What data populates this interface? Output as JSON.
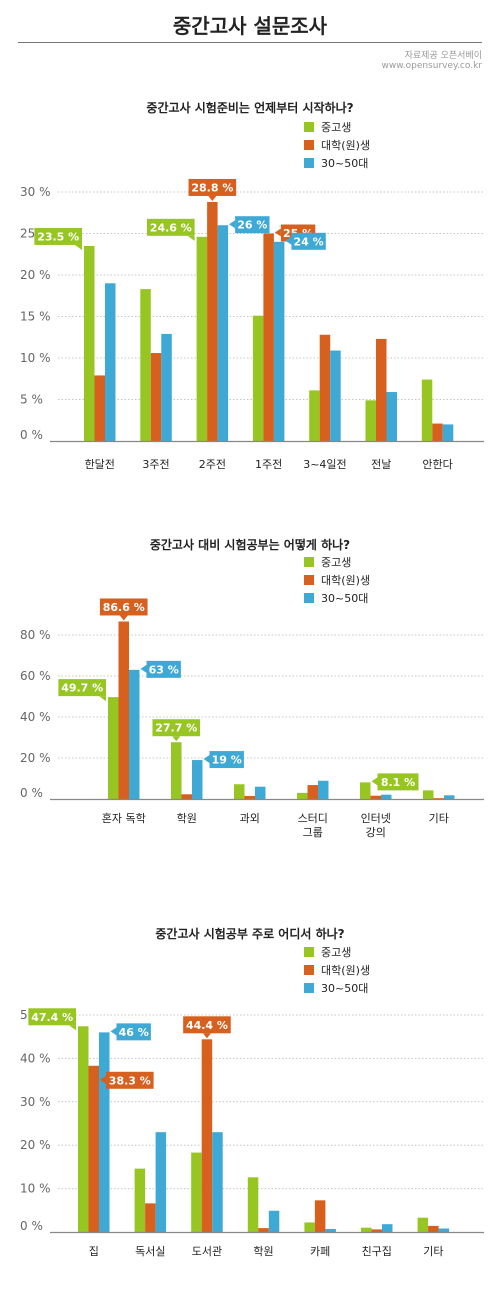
{
  "page": {
    "title": "중간고사 설문조사",
    "source_line1": "자료제공 오픈서베이",
    "source_line2": "www.opensurvey.co.kr"
  },
  "colors": {
    "series": [
      "#97c622",
      "#d7601f",
      "#3fa9d6"
    ],
    "grid": "#c4c4c4",
    "axis": "#888888"
  },
  "chart_data": [
    {
      "type": "bar",
      "title": "중간고사 시험준비는 언제부터 시작하나?",
      "categories": [
        [
          "한달전"
        ],
        [
          "3주전"
        ],
        [
          "2주전"
        ],
        [
          "1주전"
        ],
        [
          "3~4일전"
        ],
        [
          "전날"
        ],
        [
          "안한다"
        ]
      ],
      "series": [
        {
          "name": "중고생",
          "values": [
            23.5,
            18.3,
            24.6,
            15.1,
            6.1,
            4.9,
            7.4
          ]
        },
        {
          "name": "대학(원)생",
          "values": [
            7.9,
            10.6,
            28.8,
            25.0,
            12.8,
            12.3,
            2.1
          ]
        },
        {
          "name": "30~50대",
          "values": [
            19.0,
            12.9,
            26.0,
            24.0,
            10.9,
            5.9,
            2.0
          ]
        }
      ],
      "ylim": [
        0,
        30
      ],
      "yticks": [
        0,
        5,
        10,
        15,
        20,
        25,
        30
      ],
      "tick_suffix": " %",
      "legend": "top-right",
      "callouts": [
        {
          "text": "23.5 %",
          "series": 0,
          "category": 0,
          "side": "left"
        },
        {
          "text": "24.6 %",
          "series": 0,
          "category": 2,
          "side": "left"
        },
        {
          "text": "28.8 %",
          "series": 1,
          "category": 2,
          "side": "up"
        },
        {
          "text": "26 %",
          "series": 2,
          "category": 2,
          "side": "right"
        },
        {
          "text": "25 %",
          "series": 1,
          "category": 3,
          "side": "right"
        },
        {
          "text": "24 %",
          "series": 2,
          "category": 3,
          "side": "right"
        }
      ]
    },
    {
      "type": "bar",
      "title": "중간고사 대비 시험공부는 어떻게 하나?",
      "categories": [
        [
          "혼자 독학"
        ],
        [
          "학원"
        ],
        [
          "과외"
        ],
        [
          "스터디",
          "그룹"
        ],
        [
          "인터넷",
          "강의"
        ],
        [
          "기타"
        ]
      ],
      "series": [
        {
          "name": "중고생",
          "values": [
            49.7,
            27.7,
            7.2,
            3.0,
            8.1,
            4.2
          ]
        },
        {
          "name": "대학(원)생",
          "values": [
            86.6,
            2.3,
            1.5,
            6.8,
            1.6,
            0.4
          ]
        },
        {
          "name": "30~50대",
          "values": [
            63.0,
            19.0,
            6.0,
            8.9,
            2.1,
            1.8
          ]
        }
      ],
      "ylim": [
        0,
        80
      ],
      "yticks": [
        0,
        20,
        40,
        60,
        80
      ],
      "tick_suffix": " %",
      "legend": "top-right",
      "callouts": [
        {
          "text": "86.6 %",
          "series": 1,
          "category": 0,
          "side": "up"
        },
        {
          "text": "63 %",
          "series": 2,
          "category": 0,
          "side": "right"
        },
        {
          "text": "49.7 %",
          "series": 0,
          "category": 0,
          "side": "left"
        },
        {
          "text": "27.7 %",
          "series": 0,
          "category": 1,
          "side": "up"
        },
        {
          "text": "19 %",
          "series": 2,
          "category": 1,
          "side": "right"
        },
        {
          "text": "8.1 %",
          "series": 0,
          "category": 4,
          "side": "right"
        }
      ]
    },
    {
      "type": "bar",
      "title": "중간고사 시험공부 주로 어디서 하나?",
      "categories": [
        [
          "집"
        ],
        [
          "독서실"
        ],
        [
          "도서관"
        ],
        [
          "학원"
        ],
        [
          "카페"
        ],
        [
          "친구집"
        ],
        [
          "기타"
        ]
      ],
      "series": [
        {
          "name": "중고생",
          "values": [
            47.4,
            14.6,
            18.3,
            12.6,
            2.2,
            1.0,
            3.3
          ]
        },
        {
          "name": "대학(원)생",
          "values": [
            38.3,
            6.6,
            44.4,
            0.9,
            7.3,
            0.6,
            1.4
          ]
        },
        {
          "name": "30~50대",
          "values": [
            46.0,
            23.0,
            23.0,
            4.9,
            0.7,
            1.8,
            0.8
          ]
        }
      ],
      "ylim": [
        0,
        50
      ],
      "yticks": [
        0,
        10,
        20,
        30,
        40,
        50
      ],
      "tick_suffix": " %",
      "legend": "top-right",
      "callouts": [
        {
          "text": "47.4 %",
          "series": 0,
          "category": 0,
          "side": "left"
        },
        {
          "text": "46 %",
          "series": 2,
          "category": 0,
          "side": "right"
        },
        {
          "text": "38.3 %",
          "series": 1,
          "category": 0,
          "side": "right-down"
        },
        {
          "text": "44.4 %",
          "series": 1,
          "category": 2,
          "side": "up"
        }
      ]
    }
  ]
}
